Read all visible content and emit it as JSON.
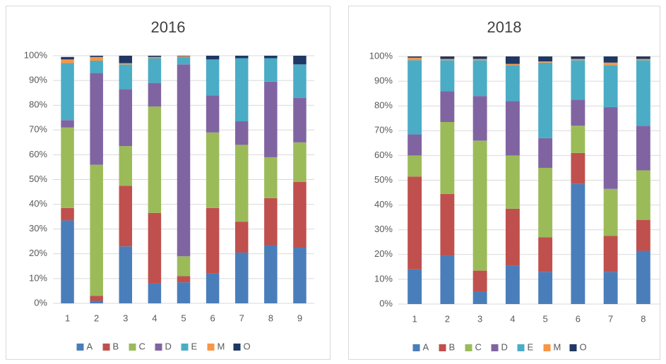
{
  "chart_data": [
    {
      "type": "bar",
      "stacked": true,
      "title": "2016",
      "categories": [
        "1",
        "2",
        "3",
        "4",
        "5",
        "6",
        "7",
        "8",
        "9"
      ],
      "ylim": [
        0,
        100
      ],
      "yticks": [
        {
          "value": 0,
          "label": "0%"
        },
        {
          "value": 10,
          "label": "10%"
        },
        {
          "value": 20,
          "label": "20%"
        },
        {
          "value": 30,
          "label": "30%"
        },
        {
          "value": 40,
          "label": "40%"
        },
        {
          "value": 50,
          "label": "50%"
        },
        {
          "value": 60,
          "label": "60%"
        },
        {
          "value": 70,
          "label": "70%"
        },
        {
          "value": 80,
          "label": "80%"
        },
        {
          "value": 90,
          "label": "90%"
        },
        {
          "value": 100,
          "label": "100%"
        }
      ],
      "legend": "bottom",
      "series": [
        {
          "name": "A",
          "color": "#4a7ebb",
          "values": [
            33.5,
            1,
            23,
            8,
            8.5,
            12,
            20.5,
            23.5,
            22.5
          ]
        },
        {
          "name": "B",
          "color": "#c0504d",
          "values": [
            5,
            2,
            24.5,
            28.5,
            2.5,
            26.5,
            12.5,
            19,
            26.5
          ]
        },
        {
          "name": "C",
          "color": "#9bbb59",
          "values": [
            32.5,
            53,
            16,
            43,
            8,
            30.5,
            31,
            16.5,
            16
          ]
        },
        {
          "name": "D",
          "color": "#8064a2",
          "values": [
            3,
            37,
            23,
            9.5,
            77.5,
            15,
            9.5,
            30.5,
            18
          ]
        },
        {
          "name": "E",
          "color": "#4bacc6",
          "values": [
            23,
            5,
            10,
            10,
            3,
            14.5,
            25.5,
            9.5,
            13.5
          ]
        },
        {
          "name": "M",
          "color": "#f79646",
          "values": [
            1.5,
            1.5,
            0.5,
            0.5,
            0.3,
            0,
            0,
            0,
            0
          ]
        },
        {
          "name": "O",
          "color": "#1f3864",
          "values": [
            1,
            0.5,
            3,
            0.5,
            0.2,
            1.5,
            1,
            1,
            3.5
          ]
        }
      ]
    },
    {
      "type": "bar",
      "stacked": true,
      "title": "2018",
      "categories": [
        "1",
        "2",
        "3",
        "4",
        "5",
        "6",
        "7",
        "8"
      ],
      "ylim": [
        0,
        100
      ],
      "yticks": [
        {
          "value": 0,
          "label": "0%"
        },
        {
          "value": 10,
          "label": "10%"
        },
        {
          "value": 20,
          "label": "20%"
        },
        {
          "value": 30,
          "label": "30%"
        },
        {
          "value": 40,
          "label": "40%"
        },
        {
          "value": 50,
          "label": "50%"
        },
        {
          "value": 60,
          "label": "60%"
        },
        {
          "value": 70,
          "label": "70%"
        },
        {
          "value": 80,
          "label": "80%"
        },
        {
          "value": 90,
          "label": "90%"
        },
        {
          "value": 100,
          "label": "100%"
        }
      ],
      "legend": "bottom",
      "series": [
        {
          "name": "A",
          "color": "#4a7ebb",
          "values": [
            14,
            19.5,
            5,
            15.5,
            13,
            48.5,
            13,
            21.5
          ]
        },
        {
          "name": "B",
          "color": "#c0504d",
          "values": [
            37.5,
            25,
            8.5,
            23,
            14,
            12.5,
            14.5,
            12.5
          ]
        },
        {
          "name": "C",
          "color": "#9bbb59",
          "values": [
            8.5,
            29,
            52.5,
            21.5,
            28,
            11,
            19,
            20
          ]
        },
        {
          "name": "D",
          "color": "#8064a2",
          "values": [
            8.5,
            12.5,
            18,
            22,
            12,
            10.5,
            33,
            18
          ]
        },
        {
          "name": "E",
          "color": "#4bacc6",
          "values": [
            30,
            12.5,
            14.5,
            14.5,
            30.5,
            16,
            17,
            26.5
          ]
        },
        {
          "name": "M",
          "color": "#f79646",
          "values": [
            1,
            0.5,
            0.5,
            0.5,
            0.5,
            0.5,
            1,
            0.5
          ]
        },
        {
          "name": "O",
          "color": "#1f3864",
          "values": [
            0.5,
            1,
            1,
            3,
            2,
            1,
            2.5,
            1
          ]
        }
      ]
    }
  ]
}
